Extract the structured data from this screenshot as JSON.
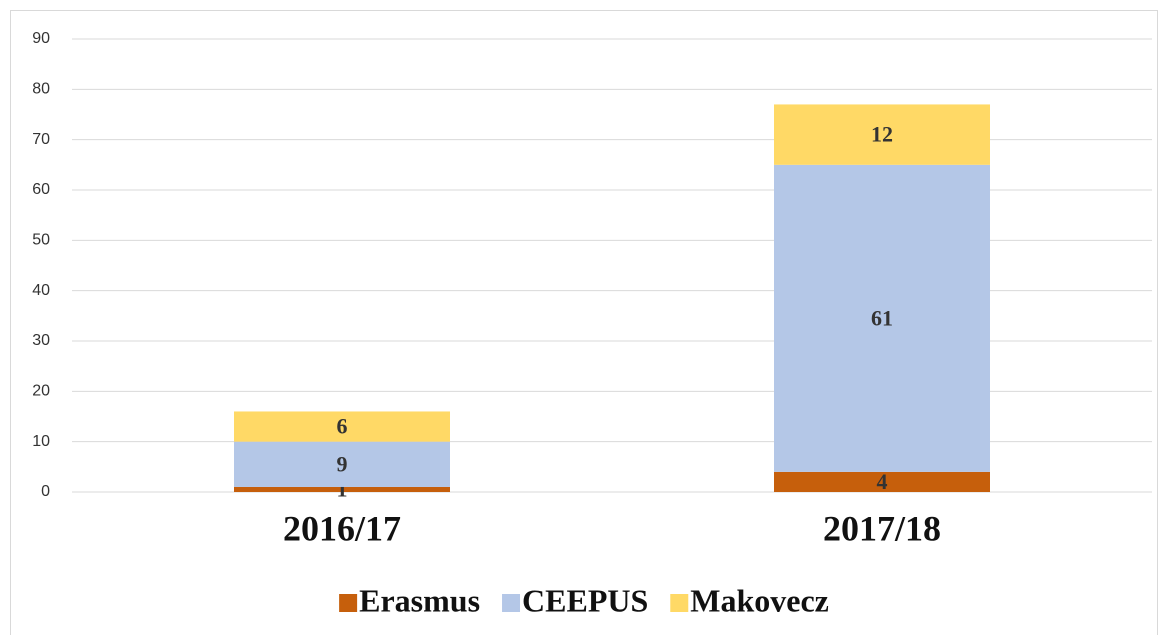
{
  "chart_data": {
    "type": "bar",
    "stacked": true,
    "categories": [
      "2016/17",
      "2017/18"
    ],
    "series": [
      {
        "name": "Erasmus",
        "color": "#c65f0c",
        "values": [
          1,
          4
        ]
      },
      {
        "name": "CEEPUS",
        "color": "#b4c7e7",
        "values": [
          9,
          61
        ]
      },
      {
        "name": "Makovecz",
        "color": "#ffd966",
        "values": [
          6,
          12
        ]
      }
    ],
    "ylim": [
      0,
      90
    ],
    "yticks": [
      0,
      10,
      20,
      30,
      40,
      50,
      60,
      70,
      80,
      90
    ],
    "grid": true,
    "legend": "bottom"
  }
}
